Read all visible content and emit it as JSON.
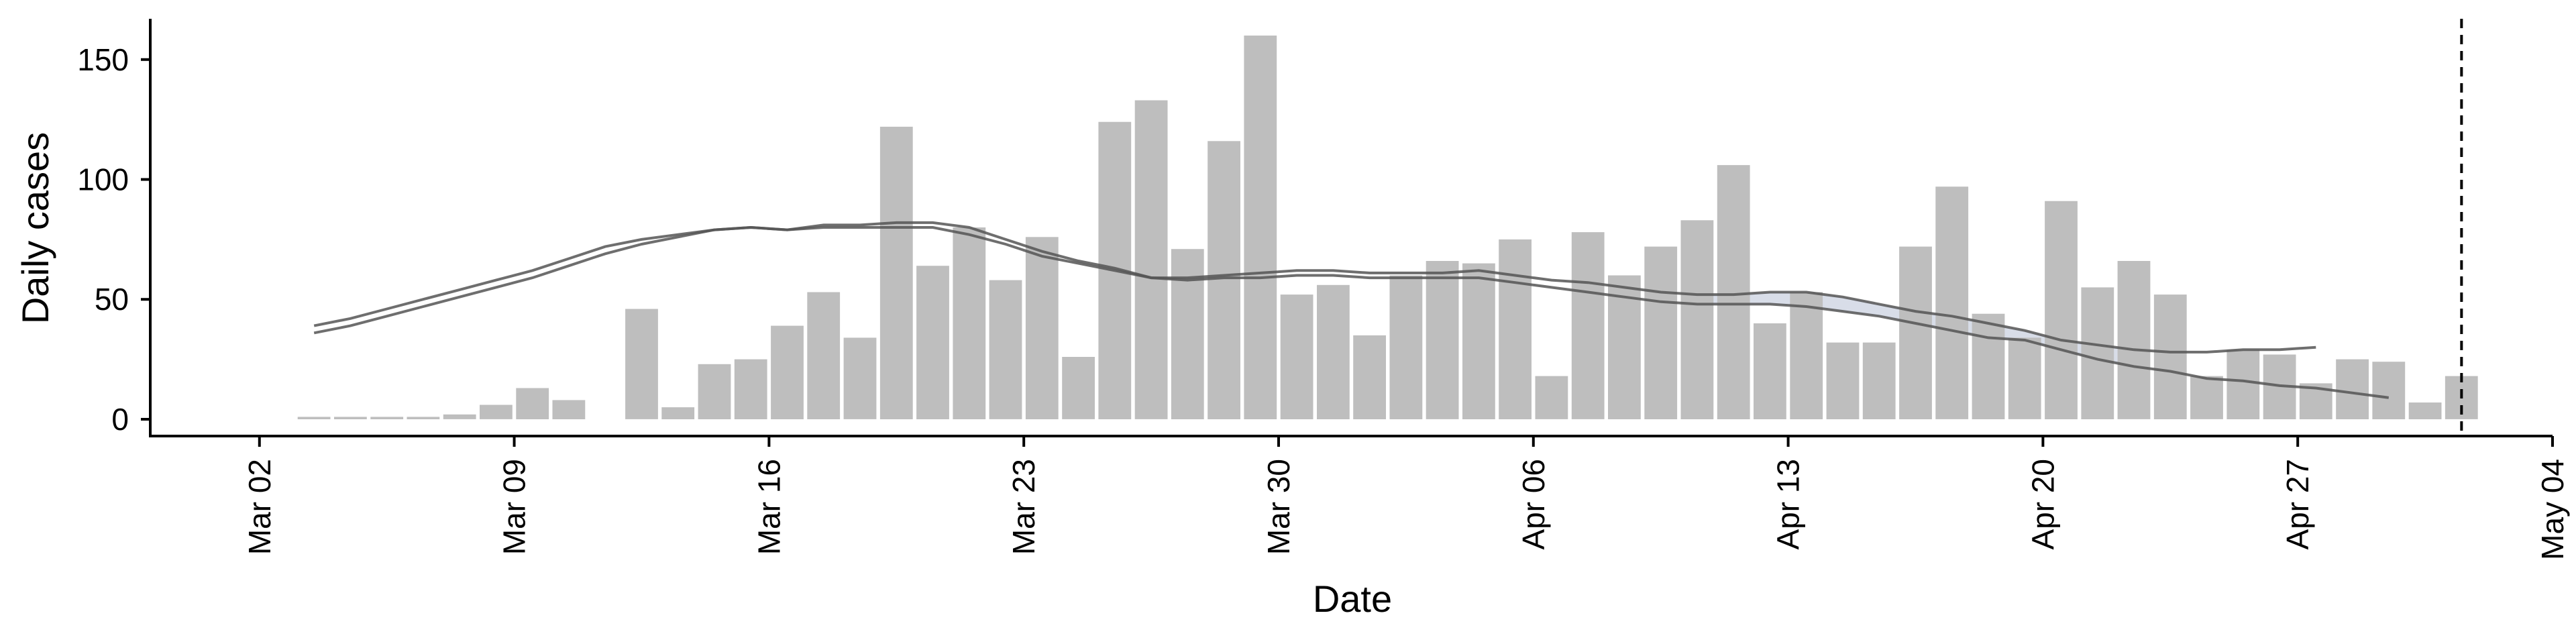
{
  "chart_data": {
    "type": "bar",
    "xlabel": "Date",
    "ylabel": "Daily cases",
    "xlim": [
      "2020-02-28",
      "2020-05-04"
    ],
    "ylim": [
      -7,
      167
    ],
    "y_ticks": [
      0,
      50,
      100,
      150
    ],
    "x_ticks": [
      {
        "date": "2020-03-02",
        "label": "Mar 02"
      },
      {
        "date": "2020-03-09",
        "label": "Mar 09"
      },
      {
        "date": "2020-03-16",
        "label": "Mar 16"
      },
      {
        "date": "2020-03-23",
        "label": "Mar 23"
      },
      {
        "date": "2020-03-30",
        "label": "Mar 30"
      },
      {
        "date": "2020-04-06",
        "label": "Apr 06"
      },
      {
        "date": "2020-04-13",
        "label": "Apr 13"
      },
      {
        "date": "2020-04-20",
        "label": "Apr 20"
      },
      {
        "date": "2020-04-27",
        "label": "Apr 27"
      },
      {
        "date": "2020-05-04",
        "label": "May 04"
      }
    ],
    "bars": {
      "start_date": "2020-03-03",
      "color": "#bebebe",
      "values": [
        1,
        1,
        1,
        1,
        2,
        6,
        13,
        8,
        0,
        46,
        5,
        23,
        25,
        39,
        53,
        34,
        122,
        64,
        80,
        58,
        76,
        26,
        124,
        133,
        71,
        116,
        160,
        52,
        56,
        35,
        60,
        66,
        65,
        75,
        18,
        78,
        60,
        72,
        83,
        106,
        40,
        53,
        32,
        32,
        72,
        97,
        44,
        34,
        91,
        55,
        66,
        52,
        18,
        29,
        27,
        15,
        25,
        24,
        7,
        18
      ]
    },
    "series": [
      {
        "start_date": "2020-03-03",
        "color": "#555555",
        "values": [
          39,
          42,
          46,
          50,
          54,
          58,
          62,
          67,
          72,
          75,
          77,
          79,
          80,
          79,
          81,
          81,
          82,
          82,
          80,
          75,
          70,
          66,
          63,
          59,
          59,
          60,
          61,
          62,
          62,
          61,
          61,
          61,
          62,
          60,
          58,
          57,
          55,
          53,
          52,
          52,
          53,
          53,
          51,
          48,
          45,
          43,
          40,
          37,
          33,
          31,
          29,
          28,
          28,
          29,
          29,
          30
        ]
      },
      {
        "start_date": "2020-03-03",
        "color": "#555555",
        "values": [
          36,
          39,
          43,
          47,
          51,
          55,
          59,
          64,
          69,
          73,
          76,
          79,
          80,
          79,
          80,
          80,
          80,
          80,
          77,
          73,
          68,
          65,
          62,
          59,
          58,
          59,
          59,
          60,
          60,
          59,
          59,
          59,
          59,
          57,
          55,
          53,
          51,
          49,
          48,
          48,
          48,
          47,
          45,
          43,
          40,
          37,
          34,
          33,
          29,
          25,
          22,
          20,
          17,
          16,
          14,
          13,
          11,
          9
        ]
      }
    ],
    "vertical_line": {
      "date": "2020-05-01",
      "style": "dashed"
    },
    "band": {
      "color": "#a9b3cc",
      "from_date": "2020-04-10",
      "to_date": "2020-04-22"
    },
    "grid": false,
    "legend": "none"
  }
}
